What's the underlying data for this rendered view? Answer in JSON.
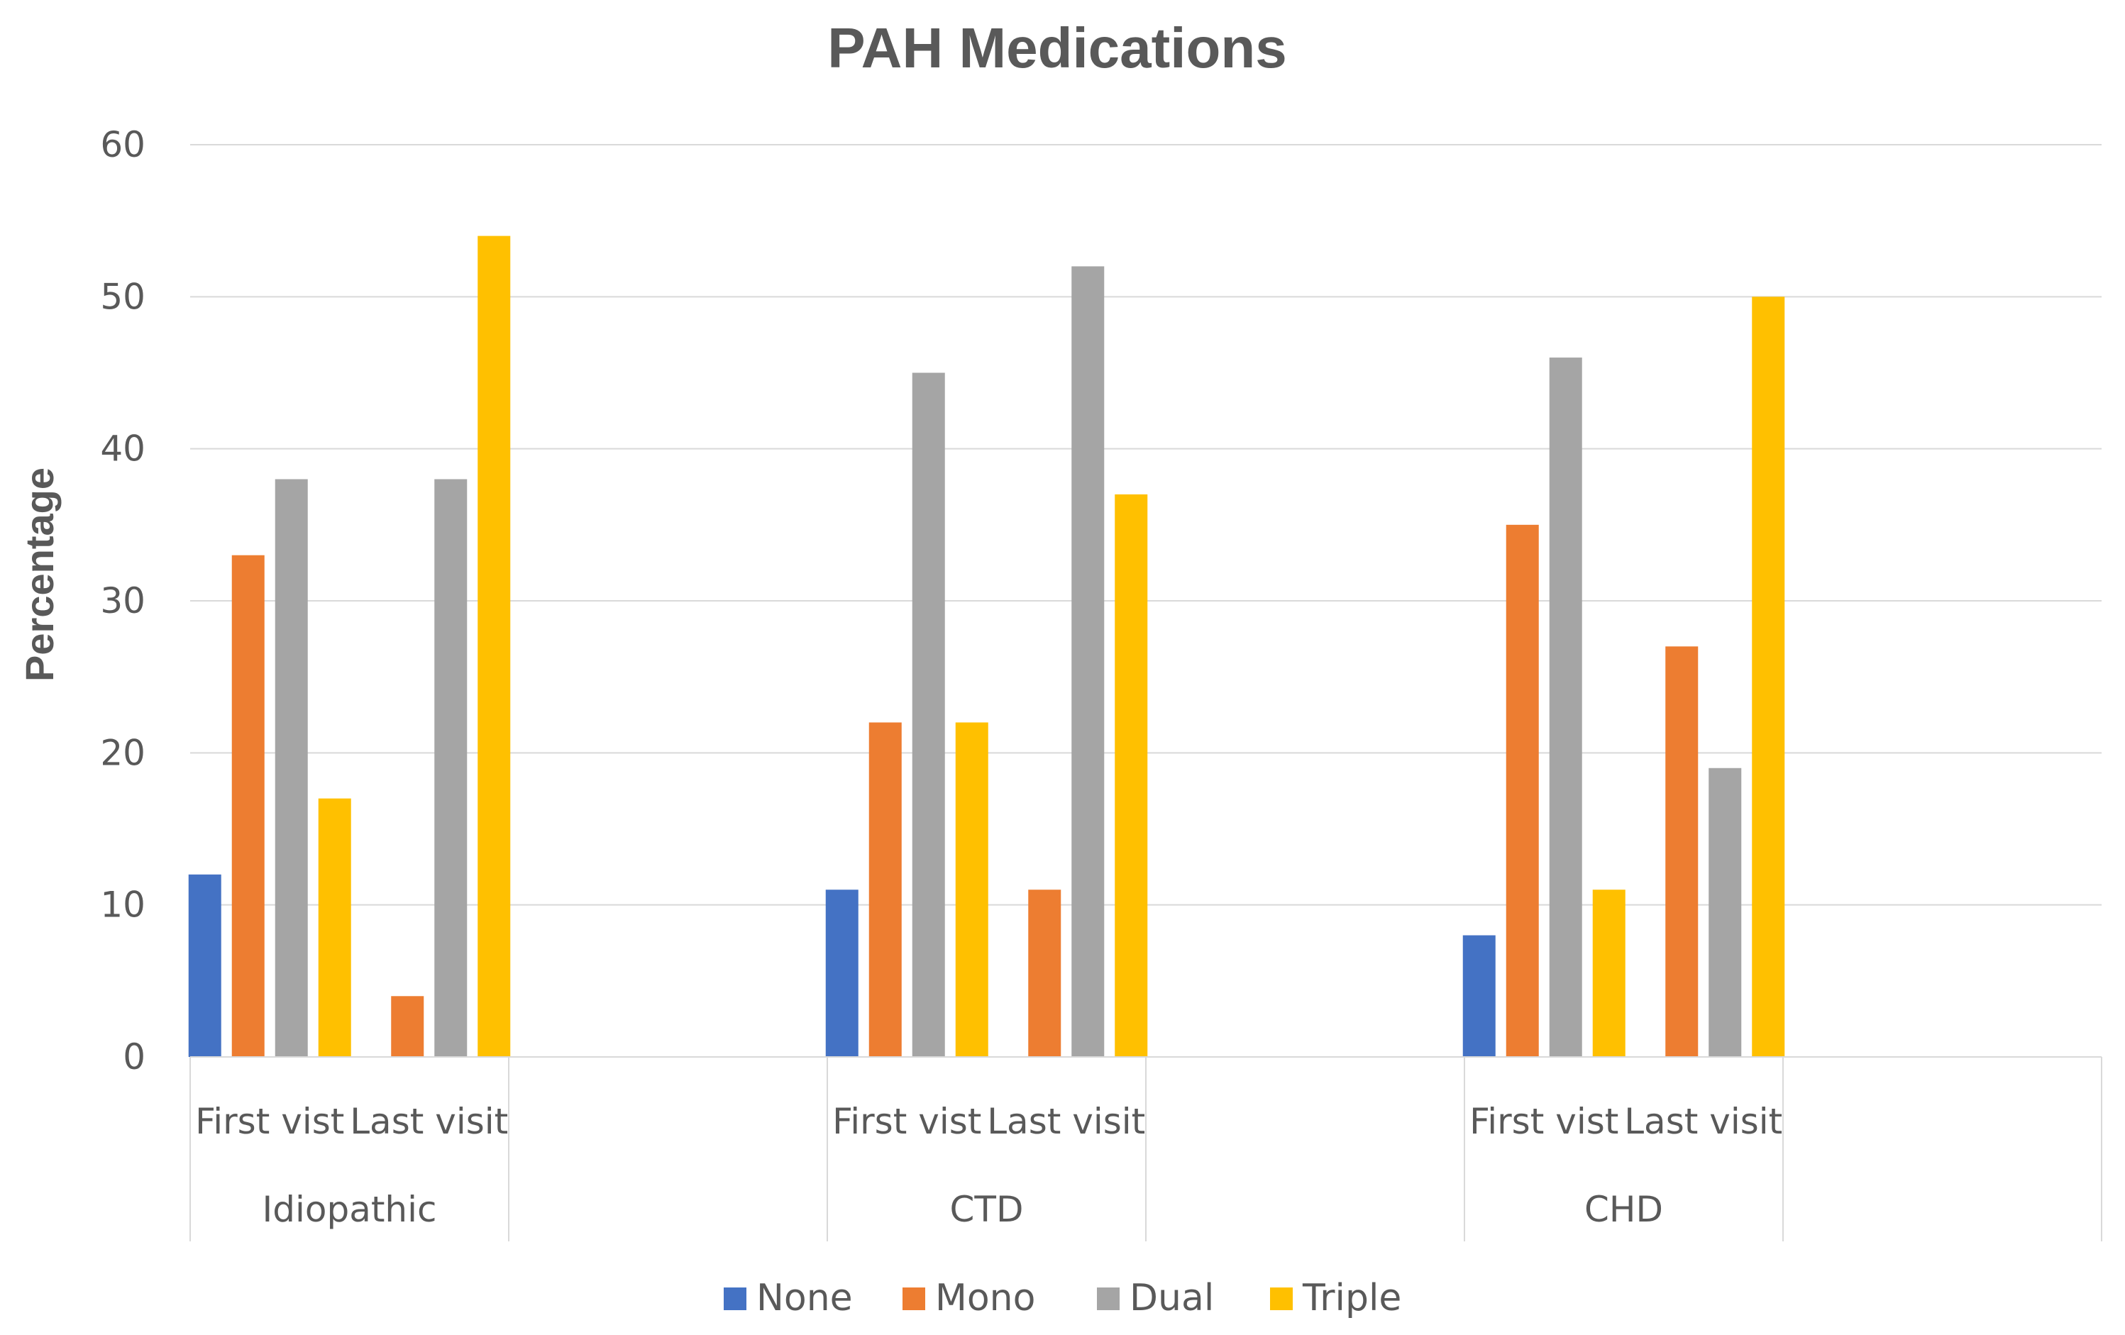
{
  "chart_data": {
    "type": "bar",
    "title": "PAH Medications",
    "xlabel": "",
    "ylabel": "Percentage",
    "ylim": [
      0,
      60
    ],
    "yticks": [
      0,
      10,
      20,
      30,
      40,
      50,
      60
    ],
    "grid": true,
    "legend_position": "bottom",
    "groups": [
      {
        "name": "Idiopathic",
        "categories": [
          "First vist",
          "Last visit"
        ]
      },
      {
        "name": "CTD",
        "categories": [
          "First vist",
          "Last visit"
        ]
      },
      {
        "name": "CHD",
        "categories": [
          "First vist",
          "Last visit"
        ]
      }
    ],
    "series": [
      {
        "name": "None",
        "color": "#4472C4",
        "values": [
          12,
          0,
          11,
          0,
          8,
          0
        ]
      },
      {
        "name": "Mono",
        "color": "#ED7D31",
        "values": [
          33,
          4,
          22,
          11,
          35,
          27
        ]
      },
      {
        "name": "Dual",
        "color": "#A5A5A5",
        "values": [
          38,
          38,
          45,
          52,
          46,
          19
        ]
      },
      {
        "name": "Triple",
        "color": "#FFC000",
        "values": [
          17,
          54,
          22,
          37,
          11,
          50
        ]
      }
    ]
  }
}
